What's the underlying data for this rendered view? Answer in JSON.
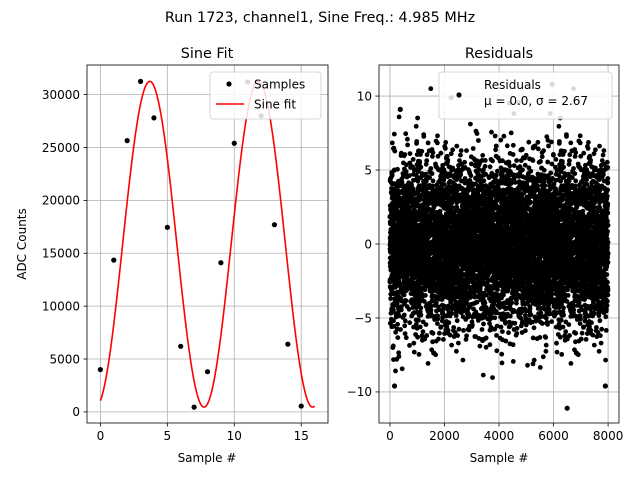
{
  "suptitle": "Run 1723, channel1, Sine Freq.: 4.985 MHz",
  "chart_data": [
    {
      "type": "scatter",
      "title": "Sine Fit",
      "xlabel": "Sample #",
      "ylabel": "ADC Counts",
      "xlim": [
        -1,
        17
      ],
      "ylim": [
        -1050,
        32800
      ],
      "xticks": [
        0,
        5,
        10,
        15
      ],
      "yticks": [
        0,
        5000,
        10000,
        15000,
        20000,
        25000,
        30000
      ],
      "grid": true,
      "legend_position": "top-right",
      "series": [
        {
          "name": "Samples",
          "type": "scatter",
          "color": "#000000",
          "x": [
            0,
            1,
            2,
            3,
            4,
            5,
            6,
            7,
            8,
            9,
            10,
            11,
            12,
            13,
            14,
            15
          ],
          "y": [
            4000,
            14350,
            25650,
            31250,
            27800,
            17450,
            6200,
            450,
            3800,
            14100,
            25400,
            31200,
            28000,
            17700,
            6400,
            550
          ]
        },
        {
          "name": "Sine fit",
          "type": "line",
          "color": "#ff0000",
          "model": {
            "offset": 15850,
            "amplitude": 15400,
            "period": 8.105,
            "phase": -1.2878
          },
          "x_range": [
            0,
            16
          ]
        }
      ]
    },
    {
      "type": "scatter",
      "title": "Residuals",
      "xlabel": "Sample #",
      "ylabel": "",
      "xlim": [
        -400,
        8400
      ],
      "ylim": [
        -12.1,
        12.1
      ],
      "xticks": [
        0,
        2000,
        4000,
        6000,
        8000
      ],
      "yticks": [
        -10,
        -5,
        0,
        5,
        10
      ],
      "grid": true,
      "legend_position": "top-right",
      "series": [
        {
          "name": "Residuals\nμ = 0.0, σ = 2.67",
          "type": "scatter",
          "color": "#000000",
          "n_points": 8000,
          "mean": 0.0,
          "std": 2.67,
          "notable_points": [
            {
              "x": 5950,
              "y": 10.8
            },
            {
              "x": 2250,
              "y": 9.9
            },
            {
              "x": 380,
              "y": 9.1
            },
            {
              "x": 6500,
              "y": -11.1
            },
            {
              "x": 7900,
              "y": -9.6
            },
            {
              "x": 170,
              "y": -9.6
            }
          ]
        }
      ]
    }
  ]
}
